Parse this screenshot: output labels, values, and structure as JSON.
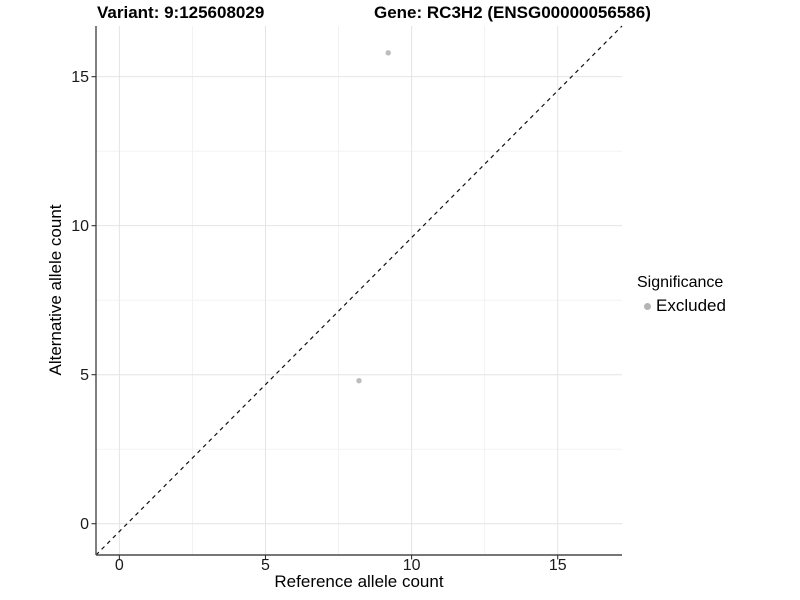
{
  "header": {
    "variant_title": "Variant: 9:125608029",
    "gene_title": "Gene: RC3H2 (ENSG00000056586)"
  },
  "chart_data": {
    "type": "scatter",
    "xlabel": "Reference allele count",
    "ylabel": "Alternative allele count",
    "xlim": [
      -0.8,
      17.2
    ],
    "ylim": [
      -1.05,
      16.7
    ],
    "x_ticks": [
      0,
      5,
      10,
      15
    ],
    "y_ticks": [
      0,
      5,
      10,
      15
    ],
    "x_minor_ticks": [
      2.5,
      7.5,
      12.5
    ],
    "y_minor_ticks": [
      2.5,
      7.5,
      12.5
    ],
    "grid": {
      "major_color": "#e4e4e4",
      "minor_color": "#f1f1f1",
      "grid_on": true
    },
    "axis": {
      "line_color": "#4a4a4a",
      "tick_color": "#333333",
      "tick_label_color": "#1a1a1a"
    },
    "identity_line": {
      "style": "dashed",
      "color": "#111111",
      "slope": 1,
      "intercept": 0
    },
    "series": [
      {
        "name": "Excluded",
        "color": "#bdbdbd",
        "point_radius": 2.7,
        "points": [
          {
            "x": 9.2,
            "y": 15.8
          },
          {
            "x": 8.2,
            "y": 4.8
          }
        ]
      }
    ],
    "legend": {
      "position": "right",
      "title": "Significance",
      "items": [
        {
          "label": "Excluded",
          "color": "#b5b5b5"
        }
      ]
    }
  }
}
